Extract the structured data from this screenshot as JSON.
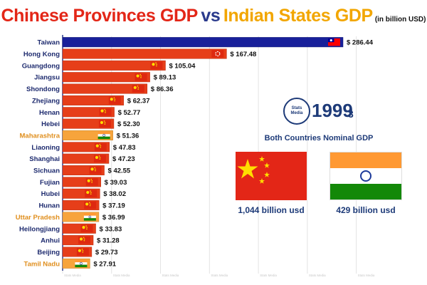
{
  "header": {
    "title_part1": "Chinese Provinces GDP",
    "title_part2": "vs",
    "title_part3": "Indian States GDP",
    "unit": "(in billion USD)"
  },
  "info_panel": {
    "logo_line1": "Stats",
    "logo_line2": "Media",
    "year": "1999",
    "year_suffix": "3",
    "subtitle": "Both Countries Nominal GDP",
    "china_total": "1,044 billion usd",
    "india_total": "429 billion usd"
  },
  "watermark": "Stats Media",
  "colors": {
    "china": "#e63e19",
    "india": "#f7a43c",
    "taiwan": "#18209a",
    "axis": "#2a3a8c"
  },
  "chart_data": {
    "type": "bar",
    "orientation": "horizontal",
    "xlim": [
      0,
      300
    ],
    "categories": [
      "Taiwan",
      "Hong Kong",
      "Guangdong",
      "Jiangsu",
      "Shondong",
      "Zhejiang",
      "Henan",
      "Hebei",
      "Maharashtra",
      "Liaoning",
      "Shanghai",
      "Sichuan",
      "Fujian",
      "Hubei",
      "Hunan",
      "Uttar Pradesh",
      "Heilongjiang",
      "Anhui",
      "Beijing",
      "Tamil Nadu"
    ],
    "values": [
      286.44,
      167.48,
      105.04,
      89.13,
      86.36,
      62.37,
      52.77,
      52.3,
      51.36,
      47.83,
      47.23,
      42.55,
      39.03,
      38.02,
      37.19,
      36.99,
      33.83,
      31.28,
      29.73,
      27.91
    ],
    "value_labels": [
      "$ 286.44",
      "$ 167.48",
      "$ 105.04",
      "$ 89.13",
      "$ 86.36",
      "$ 62.37",
      "$ 52.77",
      "$ 52.30",
      "$ 51.36",
      "$ 47.83",
      "$ 47.23",
      "$ 42.55",
      "$ 39.03",
      "$ 38.02",
      "$ 37.19",
      "$ 36.99",
      "$ 33.83",
      "$ 31.28",
      "$ 29.73",
      "$ 27.91"
    ],
    "groups": [
      "taiwan",
      "hongkong",
      "china",
      "china",
      "china",
      "china",
      "china",
      "china",
      "india",
      "china",
      "china",
      "china",
      "china",
      "china",
      "china",
      "india",
      "china",
      "china",
      "china",
      "india"
    ],
    "grid": true,
    "legend": "none"
  }
}
